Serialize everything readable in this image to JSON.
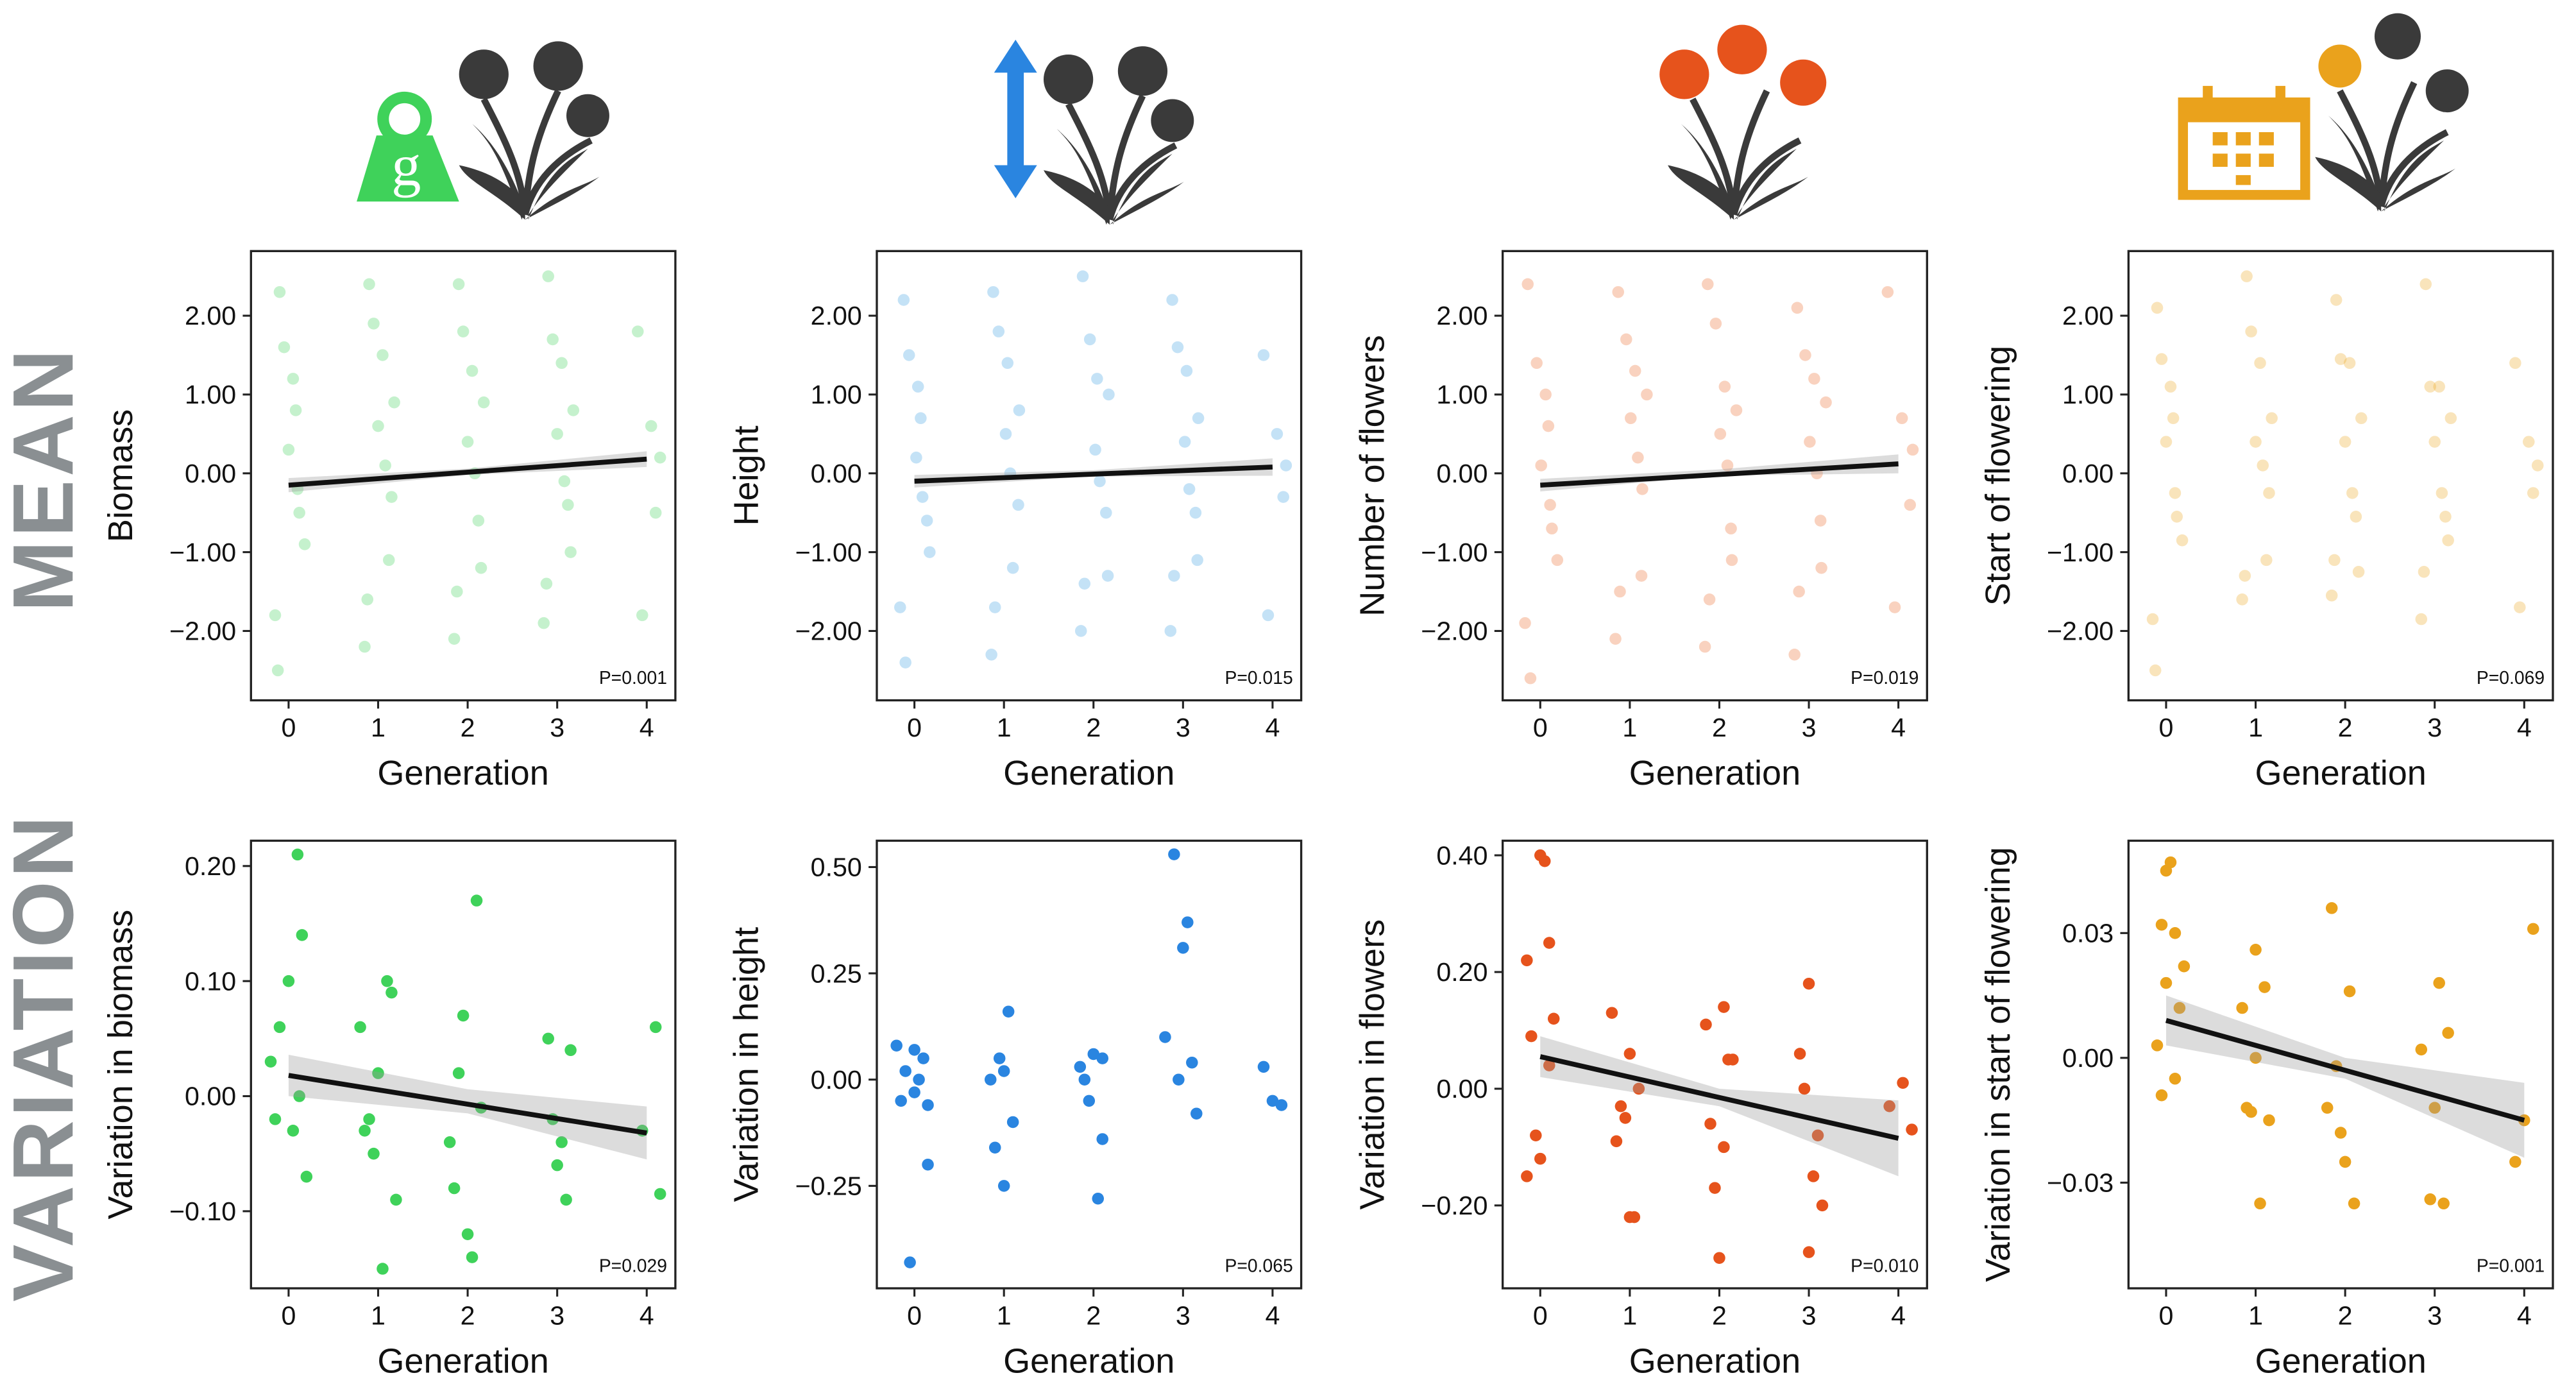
{
  "row_labels": [
    "MEAN",
    "VARIATION"
  ],
  "icon_text": "g",
  "chart_data": [
    {
      "type": "scatter",
      "ylabel": "Biomass",
      "xlabel": "Generation",
      "annotation": "P=0.001",
      "color": "#3fd25a",
      "opacity": 0.3,
      "x": [
        -0.1,
        0.05,
        0.12,
        -0.15,
        0.0,
        0.18,
        -0.05,
        0.1,
        -0.12,
        0.08,
        0.9,
        1.05,
        1.15,
        0.85,
        1.0,
        1.12,
        0.95,
        1.08,
        0.88,
        1.18,
        1.9,
        2.05,
        2.12,
        1.85,
        2.0,
        2.15,
        1.95,
        2.08,
        1.88,
        2.18,
        2.9,
        3.05,
        3.12,
        2.85,
        3.0,
        3.15,
        2.95,
        3.08,
        2.88,
        3.18,
        3.9,
        4.05,
        4.1,
        3.95,
        4.15
      ],
      "y": [
        2.3,
        1.2,
        -0.5,
        -1.8,
        0.3,
        -0.9,
        1.6,
        -0.2,
        -2.5,
        0.8,
        2.4,
        1.5,
        -0.3,
        -2.2,
        0.6,
        -1.1,
        1.9,
        0.1,
        -1.6,
        0.9,
        2.4,
        1.3,
        -0.6,
        -2.1,
        0.4,
        -1.2,
        1.8,
        0.0,
        -1.5,
        0.9,
        2.5,
        1.4,
        -0.4,
        -1.9,
        0.5,
        -1.0,
        1.7,
        -0.1,
        -1.4,
        0.8,
        1.8,
        0.6,
        -0.5,
        -1.8,
        0.2
      ],
      "xlim": [
        -0.42,
        4.32
      ],
      "ylim": [
        -2.88,
        2.82
      ],
      "xticks": [
        0,
        1,
        2,
        3,
        4
      ],
      "yticks": [
        {
          "value": 2,
          "label": "2.00"
        },
        {
          "value": 1,
          "label": "1.00"
        },
        {
          "value": 0,
          "label": "0.00"
        },
        {
          "value": -1,
          "label": "−1.00"
        },
        {
          "value": -2,
          "label": "−2.00"
        }
      ],
      "fit": {
        "x": [
          0,
          4
        ],
        "y": [
          -0.15,
          0.18
        ]
      },
      "band": {
        "x": [
          0,
          2,
          4
        ],
        "lower": [
          -0.24,
          -0.02,
          0.08
        ],
        "upper": [
          -0.06,
          0.06,
          0.28
        ]
      }
    },
    {
      "type": "scatter",
      "ylabel": "Height",
      "xlabel": "Generation",
      "annotation": "P=0.015",
      "color": "#3aa0e0",
      "opacity": 0.3,
      "x": [
        -0.12,
        0.04,
        0.14,
        -0.16,
        0.02,
        0.17,
        -0.06,
        0.09,
        -0.1,
        0.07,
        0.88,
        1.04,
        1.16,
        0.86,
        1.02,
        1.1,
        0.94,
        1.07,
        0.9,
        1.17,
        1.88,
        2.04,
        2.14,
        1.86,
        2.02,
        2.16,
        1.96,
        2.07,
        1.9,
        2.17,
        2.88,
        3.04,
        3.14,
        2.86,
        3.02,
        3.16,
        2.94,
        3.07,
        2.9,
        3.17,
        3.9,
        4.05,
        4.12,
        3.95,
        4.15
      ],
      "y": [
        2.2,
        1.1,
        -0.6,
        -1.7,
        0.2,
        -1.0,
        1.5,
        -0.3,
        -2.4,
        0.7,
        2.3,
        1.4,
        -0.4,
        -2.3,
        0.5,
        -1.2,
        1.8,
        0.0,
        -1.7,
        0.8,
        2.5,
        1.2,
        -0.5,
        -2.0,
        0.3,
        -1.3,
        1.7,
        -0.1,
        -1.4,
        1.0,
        2.2,
        1.3,
        -0.5,
        -2.0,
        0.4,
        -1.1,
        1.6,
        -0.2,
        -1.3,
        0.7,
        1.5,
        0.5,
        -0.3,
        -1.8,
        0.1
      ],
      "xlim": [
        -0.42,
        4.32
      ],
      "ylim": [
        -2.88,
        2.82
      ],
      "xticks": [
        0,
        1,
        2,
        3,
        4
      ],
      "yticks": [
        {
          "value": 2,
          "label": "2.00"
        },
        {
          "value": 1,
          "label": "1.00"
        },
        {
          "value": 0,
          "label": "0.00"
        },
        {
          "value": -1,
          "label": "−1.00"
        },
        {
          "value": -2,
          "label": "−2.00"
        }
      ],
      "fit": {
        "x": [
          0,
          4
        ],
        "y": [
          -0.1,
          0.08
        ]
      },
      "band": {
        "x": [
          0,
          2,
          4
        ],
        "lower": [
          -0.18,
          -0.04,
          -0.03
        ],
        "upper": [
          -0.02,
          0.04,
          0.19
        ]
      }
    },
    {
      "type": "scatter",
      "ylabel": "Number of flowers",
      "xlabel": "Generation",
      "annotation": "P=0.019",
      "color": "#ea6a2c",
      "opacity": 0.3,
      "x": [
        -0.14,
        0.06,
        0.13,
        -0.17,
        0.01,
        0.19,
        -0.04,
        0.11,
        -0.11,
        0.09,
        0.87,
        1.06,
        1.14,
        0.84,
        1.01,
        1.13,
        0.96,
        1.09,
        0.89,
        1.19,
        1.87,
        2.06,
        2.13,
        1.84,
        2.01,
        2.14,
        1.96,
        2.09,
        1.89,
        2.19,
        2.87,
        3.06,
        3.13,
        2.84,
        3.01,
        3.14,
        2.96,
        3.09,
        2.89,
        3.19,
        3.88,
        4.04,
        4.13,
        3.96,
        4.16
      ],
      "y": [
        2.4,
        1.0,
        -0.7,
        -1.9,
        0.1,
        -1.1,
        1.4,
        -0.4,
        -2.6,
        0.6,
        2.3,
        1.3,
        -0.2,
        -2.1,
        0.7,
        -1.3,
        1.7,
        0.2,
        -1.5,
        1.0,
        2.4,
        1.1,
        -0.7,
        -2.2,
        0.5,
        -1.1,
        1.9,
        0.1,
        -1.6,
        0.8,
        2.1,
        1.2,
        -0.6,
        -2.3,
        0.4,
        -1.2,
        1.5,
        0.0,
        -1.5,
        0.9,
        2.3,
        0.7,
        -0.4,
        -1.7,
        0.3
      ],
      "xlim": [
        -0.42,
        4.32
      ],
      "ylim": [
        -2.88,
        2.82
      ],
      "xticks": [
        0,
        1,
        2,
        3,
        4
      ],
      "yticks": [
        {
          "value": 2,
          "label": "2.00"
        },
        {
          "value": 1,
          "label": "1.00"
        },
        {
          "value": 0,
          "label": "0.00"
        },
        {
          "value": -1,
          "label": "−1.00"
        },
        {
          "value": -2,
          "label": "−2.00"
        }
      ],
      "fit": {
        "x": [
          0,
          4
        ],
        "y": [
          -0.15,
          0.12
        ]
      },
      "band": {
        "x": [
          0,
          2,
          4
        ],
        "lower": [
          -0.23,
          -0.03,
          0.0
        ],
        "upper": [
          -0.07,
          0.05,
          0.24
        ]
      }
    },
    {
      "type": "scatter",
      "ylabel": "Start of flowering",
      "xlabel": "Generation",
      "annotation": "P=0.069",
      "color": "#eaa51e",
      "opacity": 0.3,
      "x": [
        -0.1,
        0.05,
        0.12,
        -0.15,
        0.0,
        0.18,
        -0.05,
        0.1,
        -0.12,
        0.08,
        0.9,
        1.05,
        1.15,
        0.85,
        1.0,
        1.12,
        0.95,
        1.08,
        0.88,
        1.18,
        1.9,
        2.05,
        2.12,
        1.85,
        2.0,
        2.15,
        1.95,
        2.08,
        1.88,
        2.18,
        2.9,
        3.05,
        3.12,
        2.85,
        3.0,
        3.15,
        2.95,
        3.08,
        2.88,
        3.18,
        3.9,
        4.05,
        4.1,
        3.95,
        4.15
      ],
      "y": [
        2.1,
        1.1,
        -0.55,
        -1.85,
        0.4,
        -0.85,
        1.45,
        -0.25,
        -2.5,
        0.7,
        2.5,
        1.4,
        -0.25,
        -1.6,
        0.4,
        -1.1,
        1.8,
        0.1,
        -1.3,
        0.7,
        2.2,
        1.4,
        -0.55,
        -1.55,
        0.4,
        -1.25,
        1.45,
        -0.25,
        -1.1,
        0.7,
        2.4,
        1.1,
        -0.55,
        -1.85,
        0.4,
        -0.85,
        1.1,
        -0.25,
        -1.25,
        0.7,
        1.4,
        0.4,
        -0.25,
        -1.7,
        0.1
      ],
      "xlim": [
        -0.42,
        4.32
      ],
      "ylim": [
        -2.88,
        2.82
      ],
      "xticks": [
        0,
        1,
        2,
        3,
        4
      ],
      "yticks": [
        {
          "value": 2,
          "label": "2.00"
        },
        {
          "value": 1,
          "label": "1.00"
        },
        {
          "value": 0,
          "label": "0.00"
        },
        {
          "value": -1,
          "label": "−1.00"
        },
        {
          "value": -2,
          "label": "−2.00"
        }
      ]
    },
    {
      "type": "scatter",
      "ylabel": "Variation in biomass",
      "xlabel": "Generation",
      "annotation": "P=0.029",
      "color": "#3fd25a",
      "opacity": 1,
      "x": [
        -0.2,
        -0.1,
        0.0,
        0.1,
        0.15,
        0.05,
        -0.15,
        0.12,
        0.2,
        0.8,
        0.9,
        1.0,
        1.05,
        1.1,
        0.95,
        1.15,
        0.85,
        1.2,
        1.85,
        1.95,
        2.05,
        2.1,
        1.9,
        2.15,
        2.0,
        1.8,
        2.9,
        3.0,
        3.1,
        3.15,
        2.95,
        3.05,
        3.95,
        4.1,
        4.15
      ],
      "y": [
        0.03,
        0.06,
        0.1,
        0.21,
        0.14,
        -0.03,
        -0.02,
        0.0,
        -0.07,
        0.06,
        -0.02,
        0.02,
        -0.15,
        0.1,
        -0.05,
        0.09,
        -0.03,
        -0.09,
        -0.08,
        0.07,
        -0.14,
        0.17,
        0.02,
        -0.01,
        -0.12,
        -0.04,
        0.05,
        -0.06,
        -0.09,
        0.04,
        -0.02,
        -0.04,
        -0.03,
        0.06,
        -0.085
      ],
      "xlim": [
        -0.42,
        4.32
      ],
      "ylim": [
        -0.167,
        0.222
      ],
      "xticks": [
        0,
        1,
        2,
        3,
        4
      ],
      "yticks": [
        {
          "value": 0.2,
          "label": "0.20"
        },
        {
          "value": 0.1,
          "label": "0.10"
        },
        {
          "value": 0,
          "label": "0.00"
        },
        {
          "value": -0.1,
          "label": "−0.10"
        }
      ],
      "fit": {
        "x": [
          0,
          4
        ],
        "y": [
          0.018,
          -0.032
        ]
      },
      "band": {
        "x": [
          0,
          2,
          4
        ],
        "lower": [
          0.0,
          -0.015,
          -0.055
        ],
        "upper": [
          0.036,
          0.006,
          -0.009
        ]
      }
    },
    {
      "type": "scatter",
      "ylabel": "Variation in height",
      "xlabel": "Generation",
      "annotation": "P=0.065",
      "color": "#2a85e0",
      "opacity": 1,
      "x": [
        -0.2,
        -0.1,
        0,
        0.1,
        0.15,
        -0.05,
        0.05,
        0.15,
        -0.15,
        0.0,
        0.85,
        0.95,
        1.0,
        1.05,
        1.1,
        0.9,
        1.0,
        1.85,
        1.95,
        2.0,
        2.05,
        2.1,
        1.9,
        2.1,
        2.8,
        2.9,
        3.0,
        3.05,
        3.1,
        2.95,
        3.15,
        3.9,
        4.0,
        4.1
      ],
      "y": [
        0.08,
        0.02,
        -0.03,
        0.05,
        -0.06,
        -0.43,
        0.0,
        -0.2,
        -0.05,
        0.07,
        0.0,
        0.05,
        -0.25,
        0.16,
        -0.1,
        -0.16,
        0.02,
        0.03,
        -0.05,
        0.06,
        -0.28,
        -0.14,
        0.0,
        0.05,
        0.1,
        0.53,
        0.31,
        0.37,
        0.04,
        0.0,
        -0.08,
        0.03,
        -0.05,
        -0.06
      ],
      "xlim": [
        -0.42,
        4.32
      ],
      "ylim": [
        -0.491,
        0.562
      ],
      "xticks": [
        0,
        1,
        2,
        3,
        4
      ],
      "yticks": [
        {
          "value": 0.5,
          "label": "0.50"
        },
        {
          "value": 0.25,
          "label": "0.25"
        },
        {
          "value": 0,
          "label": "0.00"
        },
        {
          "value": -0.25,
          "label": "−0.25"
        }
      ]
    },
    {
      "type": "scatter",
      "ylabel": "Variation in flowers",
      "xlabel": "Generation",
      "annotation": "P=0.010",
      "color": "#e6531c",
      "opacity": 1,
      "x": [
        -0.15,
        -0.1,
        0.0,
        0.05,
        0.1,
        0.15,
        -0.05,
        0.1,
        0.0,
        -0.15,
        0.8,
        0.9,
        1.0,
        1.05,
        1.1,
        0.85,
        1.0,
        0.95,
        1.85,
        1.95,
        2.05,
        2.1,
        1.9,
        2.15,
        2.0,
        2.05,
        2.9,
        3.0,
        3.1,
        3.05,
        2.95,
        3.15,
        3.0,
        3.9,
        4.05,
        4.15
      ],
      "y": [
        0.22,
        0.09,
        0.4,
        0.39,
        0.25,
        0.12,
        -0.08,
        0.04,
        -0.12,
        -0.15,
        0.13,
        -0.03,
        0.06,
        -0.22,
        0.0,
        -0.09,
        -0.22,
        -0.05,
        0.11,
        -0.17,
        0.14,
        0.05,
        -0.06,
        0.05,
        -0.29,
        -0.1,
        0.06,
        0.18,
        -0.08,
        -0.15,
        0.0,
        -0.2,
        -0.28,
        -0.03,
        0.01,
        -0.07
      ],
      "xlim": [
        -0.42,
        4.32
      ],
      "ylim": [
        -0.342,
        0.425
      ],
      "xticks": [
        0,
        1,
        2,
        3,
        4
      ],
      "yticks": [
        {
          "value": 0.4,
          "label": "0.40"
        },
        {
          "value": 0.2,
          "label": "0.20"
        },
        {
          "value": 0,
          "label": "0.00"
        },
        {
          "value": -0.2,
          "label": "−0.20"
        }
      ],
      "fit": {
        "x": [
          0,
          4
        ],
        "y": [
          0.055,
          -0.085
        ]
      },
      "band": {
        "x": [
          0,
          2,
          4
        ],
        "lower": [
          0.02,
          -0.03,
          -0.15
        ],
        "upper": [
          0.09,
          0.0,
          -0.02
        ]
      }
    },
    {
      "type": "scatter",
      "ylabel": "Variation in start of flowering",
      "xlabel": "Generation",
      "annotation": "P=0.001",
      "color": "#eaa21c",
      "opacity": 1,
      "x": [
        -0.1,
        -0.05,
        0.0,
        0.05,
        0.1,
        0.15,
        -0.05,
        0.1,
        0.0,
        0.2,
        0.85,
        0.95,
        1.0,
        1.05,
        1.1,
        0.9,
        1.15,
        1.0,
        1.85,
        1.95,
        2.05,
        1.9,
        2.1,
        2.0,
        1.8,
        2.85,
        2.95,
        3.05,
        3.1,
        3.15,
        3.0,
        3.9,
        4.0,
        4.1
      ],
      "y": [
        0.003,
        -0.009,
        0.045,
        0.047,
        0.03,
        0.012,
        0.032,
        -0.005,
        0.018,
        0.022,
        0.012,
        -0.013,
        0.026,
        -0.035,
        0.017,
        -0.012,
        -0.015,
        0.0,
        0.036,
        -0.018,
        0.016,
        -0.002,
        -0.035,
        -0.025,
        -0.012,
        0.002,
        -0.034,
        0.018,
        -0.035,
        0.006,
        -0.012,
        -0.025,
        -0.015,
        0.031
      ],
      "xlim": [
        -0.42,
        4.32
      ],
      "ylim": [
        -0.0554,
        0.0522
      ],
      "xticks": [
        0,
        1,
        2,
        3,
        4
      ],
      "yticks": [
        {
          "value": 0.03,
          "label": "0.03"
        },
        {
          "value": 0,
          "label": "0.00"
        },
        {
          "value": -0.03,
          "label": "−0.03"
        }
      ],
      "fit": {
        "x": [
          0,
          4
        ],
        "y": [
          0.009,
          -0.015
        ]
      },
      "band": {
        "x": [
          0,
          2,
          4
        ],
        "lower": [
          0.003,
          -0.005,
          -0.024
        ],
        "upper": [
          0.015,
          0.0,
          -0.006
        ]
      }
    }
  ]
}
